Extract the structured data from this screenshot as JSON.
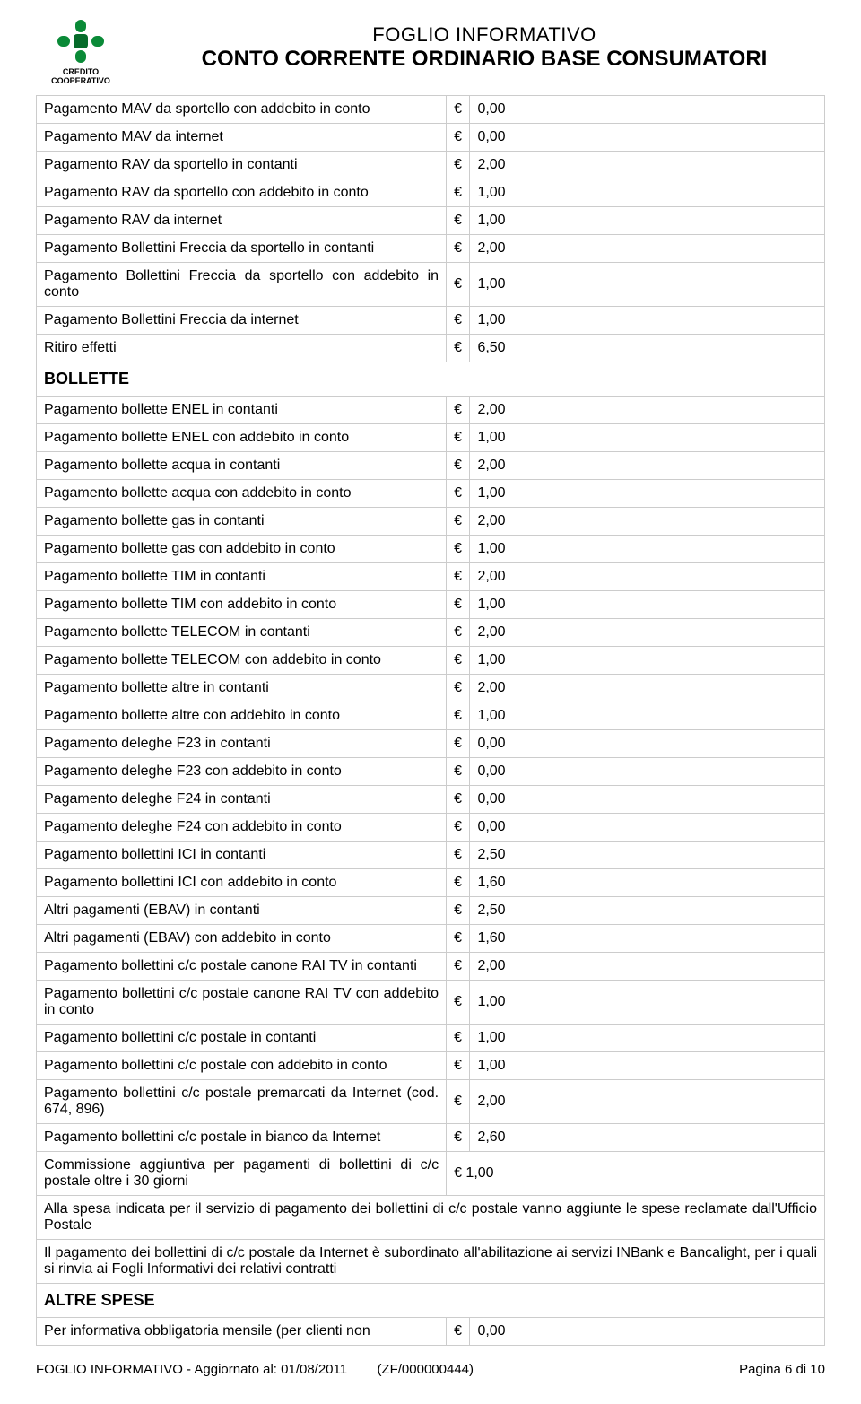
{
  "header": {
    "logo_line1": "CREDITO",
    "logo_line2": "COOPERATIVO",
    "logo_color": "#0a8a37",
    "title_line1": "FOGLIO INFORMATIVO",
    "title_line2": "CONTO CORRENTE ORDINARIO BASE CONSUMATORI"
  },
  "currency": "€",
  "rows1": [
    {
      "label": "Pagamento MAV da sportello con addebito in conto",
      "value": "0,00"
    },
    {
      "label": "Pagamento MAV da internet",
      "value": "0,00"
    },
    {
      "label": "Pagamento RAV da sportello in contanti",
      "value": "2,00"
    },
    {
      "label": "Pagamento RAV da sportello con addebito in conto",
      "value": "1,00"
    },
    {
      "label": "Pagamento RAV da internet",
      "value": "1,00"
    },
    {
      "label": "Pagamento Bollettini Freccia da sportello in contanti",
      "value": "2,00"
    },
    {
      "label": "Pagamento Bollettini Freccia da sportello con addebito in conto",
      "value": "1,00"
    },
    {
      "label": "Pagamento Bollettini Freccia da internet",
      "value": "1,00"
    },
    {
      "label": "Ritiro effetti",
      "value": "6,50"
    }
  ],
  "section1": "BOLLETTE",
  "rows2": [
    {
      "label": "Pagamento bollette ENEL in contanti",
      "value": "2,00"
    },
    {
      "label": "Pagamento bollette ENEL con addebito in conto",
      "value": "1,00"
    },
    {
      "label": "Pagamento bollette acqua in contanti",
      "value": "2,00"
    },
    {
      "label": "Pagamento bollette acqua con addebito in conto",
      "value": "1,00"
    },
    {
      "label": "Pagamento bollette gas in contanti",
      "value": "2,00"
    },
    {
      "label": "Pagamento bollette gas con addebito in conto",
      "value": "1,00"
    },
    {
      "label": "Pagamento bollette TIM in contanti",
      "value": "2,00"
    },
    {
      "label": "Pagamento bollette TIM con addebito in conto",
      "value": "1,00"
    },
    {
      "label": "Pagamento bollette TELECOM in contanti",
      "value": "2,00"
    },
    {
      "label": "Pagamento bollette TELECOM con addebito in conto",
      "value": "1,00"
    },
    {
      "label": "Pagamento bollette altre in contanti",
      "value": "2,00"
    },
    {
      "label": "Pagamento bollette altre con addebito in conto",
      "value": "1,00"
    },
    {
      "label": "Pagamento deleghe F23 in contanti",
      "value": "0,00"
    },
    {
      "label": "Pagamento deleghe F23 con addebito in conto",
      "value": "0,00"
    },
    {
      "label": "Pagamento deleghe F24 in contanti",
      "value": "0,00"
    },
    {
      "label": "Pagamento deleghe F24 con addebito in conto",
      "value": "0,00"
    },
    {
      "label": "Pagamento bollettini ICI in contanti",
      "value": "2,50"
    },
    {
      "label": "Pagamento bollettini ICI con addebito in conto",
      "value": "1,60"
    },
    {
      "label": "Altri  pagamenti  (EBAV) in contanti",
      "value": "2,50"
    },
    {
      "label": "Altri  pagamenti  (EBAV) con addebito in conto",
      "value": "1,60"
    },
    {
      "label": "Pagamento bollettini c/c postale canone RAI TV in contanti",
      "value": "2,00"
    },
    {
      "label": "Pagamento bollettini c/c postale canone RAI TV con addebito in conto",
      "value": "1,00"
    },
    {
      "label": "Pagamento bollettini c/c postale in contanti",
      "value": "1,00"
    },
    {
      "label": "Pagamento bollettini c/c postale con addebito in conto",
      "value": "1,00"
    },
    {
      "label": "Pagamento bollettini c/c postale premarcati da Internet (cod. 674, 896)",
      "value": "2,00"
    },
    {
      "label": "Pagamento bollettini c/c postale in bianco da Internet",
      "value": "2,60"
    },
    {
      "label": "Commissione aggiuntiva per pagamenti di bollettini di c/c postale oltre i 30 giorni",
      "value": "1,00",
      "inline": true
    }
  ],
  "notes": [
    "Alla spesa indicata per il servizio di pagamento dei bollettini di c/c postale vanno aggiunte le spese reclamate dall'Ufficio Postale",
    "Il pagamento dei bollettini di c/c postale da Internet è subordinato all'abilitazione ai servizi INBank e Bancalight, per i quali si rinvia ai Fogli Informativi dei relativi contratti"
  ],
  "section2": "ALTRE SPESE",
  "rows3": [
    {
      "label": "Per informativa obbligatoria mensile (per clienti non",
      "value": "0,00"
    }
  ],
  "footer": {
    "left": "FOGLIO INFORMATIVO - Aggiornato al: 01/08/2011",
    "center": "(ZF/000000444)",
    "right": "Pagina 6 di 10"
  }
}
